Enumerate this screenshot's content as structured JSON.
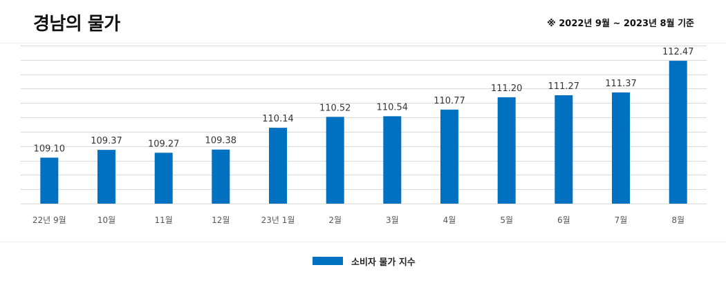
{
  "title": "경남의 물가",
  "note": "※ 2022년 9월 ~ 2023년 8월 기준",
  "colors": {
    "bar": "#0070C0",
    "grid": "#d9d9d9",
    "value_text": "#333333",
    "tick_text": "#555555"
  },
  "chart_data": {
    "type": "bar",
    "categories": [
      "22년 9월",
      "10월",
      "11월",
      "12월",
      "23년 1월",
      "2월",
      "3월",
      "4월",
      "5월",
      "6월",
      "7월",
      "8월"
    ],
    "series": [
      {
        "name": "소비자 물가 지수",
        "values": [
          109.1,
          109.37,
          109.27,
          109.38,
          110.14,
          110.52,
          110.54,
          110.77,
          111.2,
          111.27,
          111.37,
          112.47
        ]
      }
    ],
    "value_labels": [
      "109.10",
      "109.37",
      "109.27",
      "109.38",
      "110.14",
      "110.52",
      "110.54",
      "110.77",
      "111.20",
      "111.27",
      "111.37",
      "112.47"
    ],
    "ylim": [
      107.5,
      113
    ],
    "grid": true,
    "legend_position": "bottom"
  },
  "legend": {
    "label": "소비자 물가 지수"
  }
}
